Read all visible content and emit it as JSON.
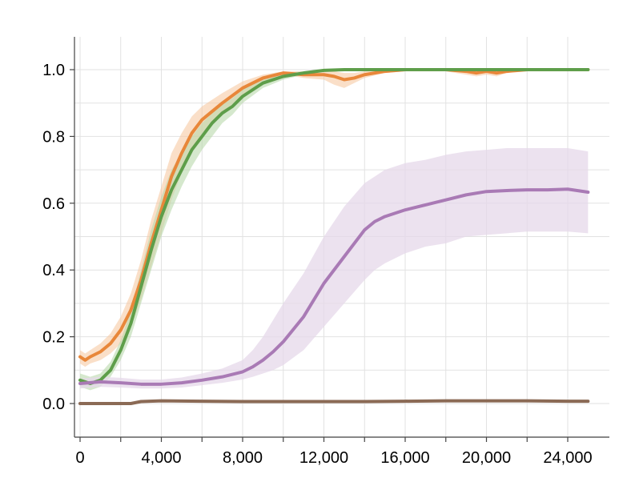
{
  "chart_data": {
    "type": "line",
    "title": "",
    "xlabel": "",
    "ylabel": "",
    "xlim": [
      0,
      25000
    ],
    "ylim": [
      -0.1,
      1.1
    ],
    "x_ticks": [
      0,
      4000,
      8000,
      12000,
      16000,
      20000,
      24000
    ],
    "x_tick_labels": [
      "0",
      "4,000",
      "8,000",
      "12,000",
      "16,000",
      "20,000",
      "24,000"
    ],
    "y_ticks": [
      0.0,
      0.2,
      0.4,
      0.6,
      0.8,
      1.0
    ],
    "y_tick_labels": [
      "0.0",
      "0.2",
      "0.4",
      "0.6",
      "0.8",
      "1.0"
    ],
    "grid": true,
    "legend": "none",
    "series": [
      {
        "color": "#e8873a",
        "band_color": "#f6c9a4",
        "x": [
          0,
          250,
          500,
          1000,
          1500,
          2000,
          2500,
          3000,
          3500,
          4000,
          4500,
          5000,
          5500,
          6000,
          7000,
          8000,
          9000,
          10000,
          11000,
          12000,
          12500,
          13000,
          13500,
          14000,
          15000,
          16000,
          18000,
          19000,
          19500,
          20000,
          20500,
          21000,
          22000,
          24000,
          25000
        ],
        "y": [
          0.14,
          0.13,
          0.14,
          0.155,
          0.18,
          0.22,
          0.28,
          0.37,
          0.48,
          0.58,
          0.68,
          0.75,
          0.81,
          0.85,
          0.9,
          0.945,
          0.975,
          0.99,
          0.985,
          0.985,
          0.98,
          0.97,
          0.975,
          0.985,
          0.995,
          1.0,
          1.0,
          0.995,
          0.99,
          0.995,
          0.99,
          0.995,
          1.0,
          1.0,
          1.0
        ],
        "lower": [
          0.12,
          0.11,
          0.12,
          0.13,
          0.15,
          0.18,
          0.23,
          0.31,
          0.41,
          0.51,
          0.61,
          0.69,
          0.76,
          0.81,
          0.87,
          0.925,
          0.965,
          0.985,
          0.975,
          0.97,
          0.955,
          0.945,
          0.96,
          0.975,
          0.99,
          0.995,
          0.995,
          0.985,
          0.98,
          0.985,
          0.98,
          0.99,
          0.995,
          0.995,
          0.995
        ],
        "upper": [
          0.16,
          0.15,
          0.16,
          0.18,
          0.21,
          0.26,
          0.33,
          0.43,
          0.55,
          0.65,
          0.75,
          0.81,
          0.86,
          0.89,
          0.93,
          0.965,
          0.985,
          0.995,
          0.995,
          0.995,
          0.995,
          0.99,
          0.99,
          0.995,
          1.0,
          1.0,
          1.0,
          1.0,
          1.0,
          1.0,
          1.0,
          1.0,
          1.0,
          1.0,
          1.0
        ]
      },
      {
        "color": "#5e9e4a",
        "band_color": "#b9d9ac",
        "x": [
          0,
          250,
          500,
          1000,
          1500,
          2000,
          2500,
          3000,
          3500,
          4000,
          4500,
          5000,
          5500,
          6000,
          6500,
          7000,
          7500,
          8000,
          9000,
          10000,
          11000,
          12000,
          13000,
          14000,
          16000,
          18000,
          20000,
          22000,
          24000,
          25000
        ],
        "y": [
          0.07,
          0.065,
          0.06,
          0.07,
          0.1,
          0.16,
          0.24,
          0.35,
          0.46,
          0.56,
          0.64,
          0.7,
          0.76,
          0.8,
          0.84,
          0.87,
          0.89,
          0.92,
          0.96,
          0.98,
          0.99,
          0.998,
          1.0,
          1.0,
          1.0,
          1.0,
          1.0,
          1.0,
          1.0,
          1.0
        ],
        "lower": [
          0.05,
          0.045,
          0.04,
          0.05,
          0.08,
          0.13,
          0.2,
          0.3,
          0.4,
          0.5,
          0.58,
          0.65,
          0.71,
          0.76,
          0.8,
          0.84,
          0.865,
          0.9,
          0.945,
          0.97,
          0.985,
          0.995,
          0.998,
          0.999,
          1.0,
          1.0,
          1.0,
          1.0,
          1.0,
          1.0
        ],
        "upper": [
          0.09,
          0.085,
          0.08,
          0.09,
          0.125,
          0.19,
          0.28,
          0.4,
          0.52,
          0.62,
          0.7,
          0.75,
          0.8,
          0.84,
          0.87,
          0.895,
          0.915,
          0.94,
          0.97,
          0.99,
          0.995,
          1.0,
          1.0,
          1.0,
          1.0,
          1.0,
          1.0,
          1.0,
          1.0,
          1.0
        ]
      },
      {
        "color": "#a97ab5",
        "band_color": "#e6d8ea",
        "x": [
          0,
          1000,
          2000,
          3000,
          4000,
          5000,
          6000,
          7000,
          8000,
          8500,
          9000,
          9500,
          10000,
          11000,
          12000,
          13000,
          14000,
          14500,
          15000,
          16000,
          17000,
          18000,
          19000,
          20000,
          21000,
          22000,
          23000,
          24000,
          25000
        ],
        "y": [
          0.06,
          0.065,
          0.062,
          0.058,
          0.058,
          0.062,
          0.07,
          0.08,
          0.095,
          0.11,
          0.13,
          0.155,
          0.185,
          0.26,
          0.36,
          0.44,
          0.52,
          0.545,
          0.56,
          0.58,
          0.595,
          0.61,
          0.625,
          0.635,
          0.638,
          0.64,
          0.64,
          0.642,
          0.633
        ],
        "lower": [
          0.045,
          0.05,
          0.048,
          0.045,
          0.045,
          0.048,
          0.055,
          0.062,
          0.072,
          0.08,
          0.09,
          0.1,
          0.115,
          0.16,
          0.23,
          0.3,
          0.37,
          0.4,
          0.42,
          0.45,
          0.47,
          0.48,
          0.5,
          0.505,
          0.51,
          0.515,
          0.515,
          0.515,
          0.51
        ],
        "upper": [
          0.075,
          0.08,
          0.077,
          0.072,
          0.072,
          0.078,
          0.09,
          0.105,
          0.13,
          0.16,
          0.2,
          0.25,
          0.3,
          0.39,
          0.5,
          0.59,
          0.66,
          0.68,
          0.7,
          0.72,
          0.73,
          0.745,
          0.755,
          0.76,
          0.765,
          0.765,
          0.765,
          0.765,
          0.755
        ]
      },
      {
        "color": "#8b6a55",
        "band_color": "#d6c9bf",
        "x": [
          0,
          1000,
          2000,
          2500,
          3000,
          4000,
          6000,
          8000,
          10000,
          12000,
          14000,
          16000,
          18000,
          20000,
          22000,
          24000,
          25000
        ],
        "y": [
          0.0,
          0.0,
          0.0,
          0.0,
          0.006,
          0.008,
          0.007,
          0.006,
          0.006,
          0.006,
          0.006,
          0.007,
          0.008,
          0.008,
          0.008,
          0.007,
          0.007
        ],
        "lower": [
          -0.003,
          -0.003,
          -0.003,
          -0.003,
          0.002,
          0.004,
          0.003,
          0.002,
          0.002,
          0.002,
          0.002,
          0.003,
          0.004,
          0.004,
          0.004,
          0.003,
          0.003
        ],
        "upper": [
          0.003,
          0.003,
          0.003,
          0.003,
          0.01,
          0.012,
          0.011,
          0.01,
          0.01,
          0.01,
          0.01,
          0.011,
          0.012,
          0.012,
          0.012,
          0.011,
          0.011
        ]
      }
    ]
  }
}
